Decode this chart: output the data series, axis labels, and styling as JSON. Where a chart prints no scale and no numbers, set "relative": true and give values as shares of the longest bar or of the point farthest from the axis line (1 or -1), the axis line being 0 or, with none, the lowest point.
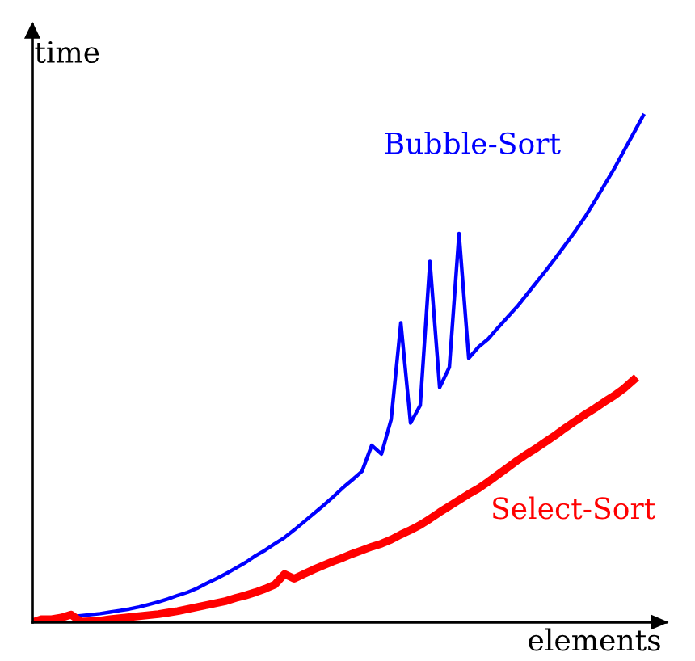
{
  "chart_data": {
    "type": "line",
    "relative": true,
    "xlabel": "elements",
    "ylabel": "time",
    "marker": "none",
    "line_style": "solid",
    "categories": [
      null,
      null,
      null,
      null,
      null,
      null,
      null,
      null,
      null,
      null,
      null,
      null,
      null,
      null,
      null,
      null,
      null,
      null,
      null,
      null,
      null,
      null,
      null,
      null,
      null,
      null,
      null,
      null,
      null,
      null,
      null,
      null,
      null,
      null,
      null,
      null,
      null,
      null,
      null,
      null,
      null,
      null,
      null,
      null,
      null,
      null,
      null,
      null,
      null,
      null,
      null,
      null,
      null,
      null,
      null,
      null,
      null,
      null,
      null,
      null,
      null,
      null,
      null,
      null
    ],
    "series": [
      {
        "name": "Bubble-Sort",
        "color": "#0000ff",
        "values": [
          null,
          null,
          null,
          null,
          0.011,
          0.013,
          0.015,
          0.017,
          0.02,
          0.023,
          0.026,
          0.03,
          0.035,
          0.04,
          0.046,
          0.053,
          0.059,
          0.067,
          0.077,
          0.086,
          0.096,
          0.107,
          0.118,
          0.131,
          0.142,
          0.155,
          0.167,
          0.182,
          0.198,
          0.214,
          0.23,
          0.247,
          0.265,
          0.281,
          0.298,
          0.349,
          0.332,
          0.4,
          0.591,
          0.393,
          0.428,
          0.712,
          0.463,
          0.503,
          0.767,
          0.521,
          0.543,
          0.559,
          0.581,
          0.602,
          0.623,
          0.647,
          0.671,
          0.695,
          0.72,
          0.746,
          0.772,
          0.8,
          0.831,
          0.863,
          0.895,
          0.93,
          0.965,
          1
        ]
      },
      {
        "name": "Select-Sort",
        "color": "#ff0000",
        "values": [
          0,
          0.006,
          0.006,
          0.009,
          0.015,
          0.001,
          0.002,
          0.003,
          0.006,
          0.008,
          0.01,
          0.012,
          0.014,
          0.016,
          0.019,
          0.022,
          0.026,
          0.03,
          0.034,
          0.038,
          0.042,
          0.048,
          0.053,
          0.059,
          0.066,
          0.074,
          0.095,
          0.086,
          0.095,
          0.104,
          0.112,
          0.12,
          0.127,
          0.135,
          0.142,
          0.149,
          0.155,
          0.163,
          0.173,
          0.182,
          0.192,
          0.204,
          0.217,
          0.229,
          0.241,
          0.253,
          0.264,
          0.277,
          0.291,
          0.305,
          0.319,
          0.332,
          0.344,
          0.357,
          0.37,
          0.384,
          0.397,
          0.41,
          0.422,
          0.435,
          0.447,
          0.461,
          0.478,
          null
        ]
      }
    ]
  }
}
